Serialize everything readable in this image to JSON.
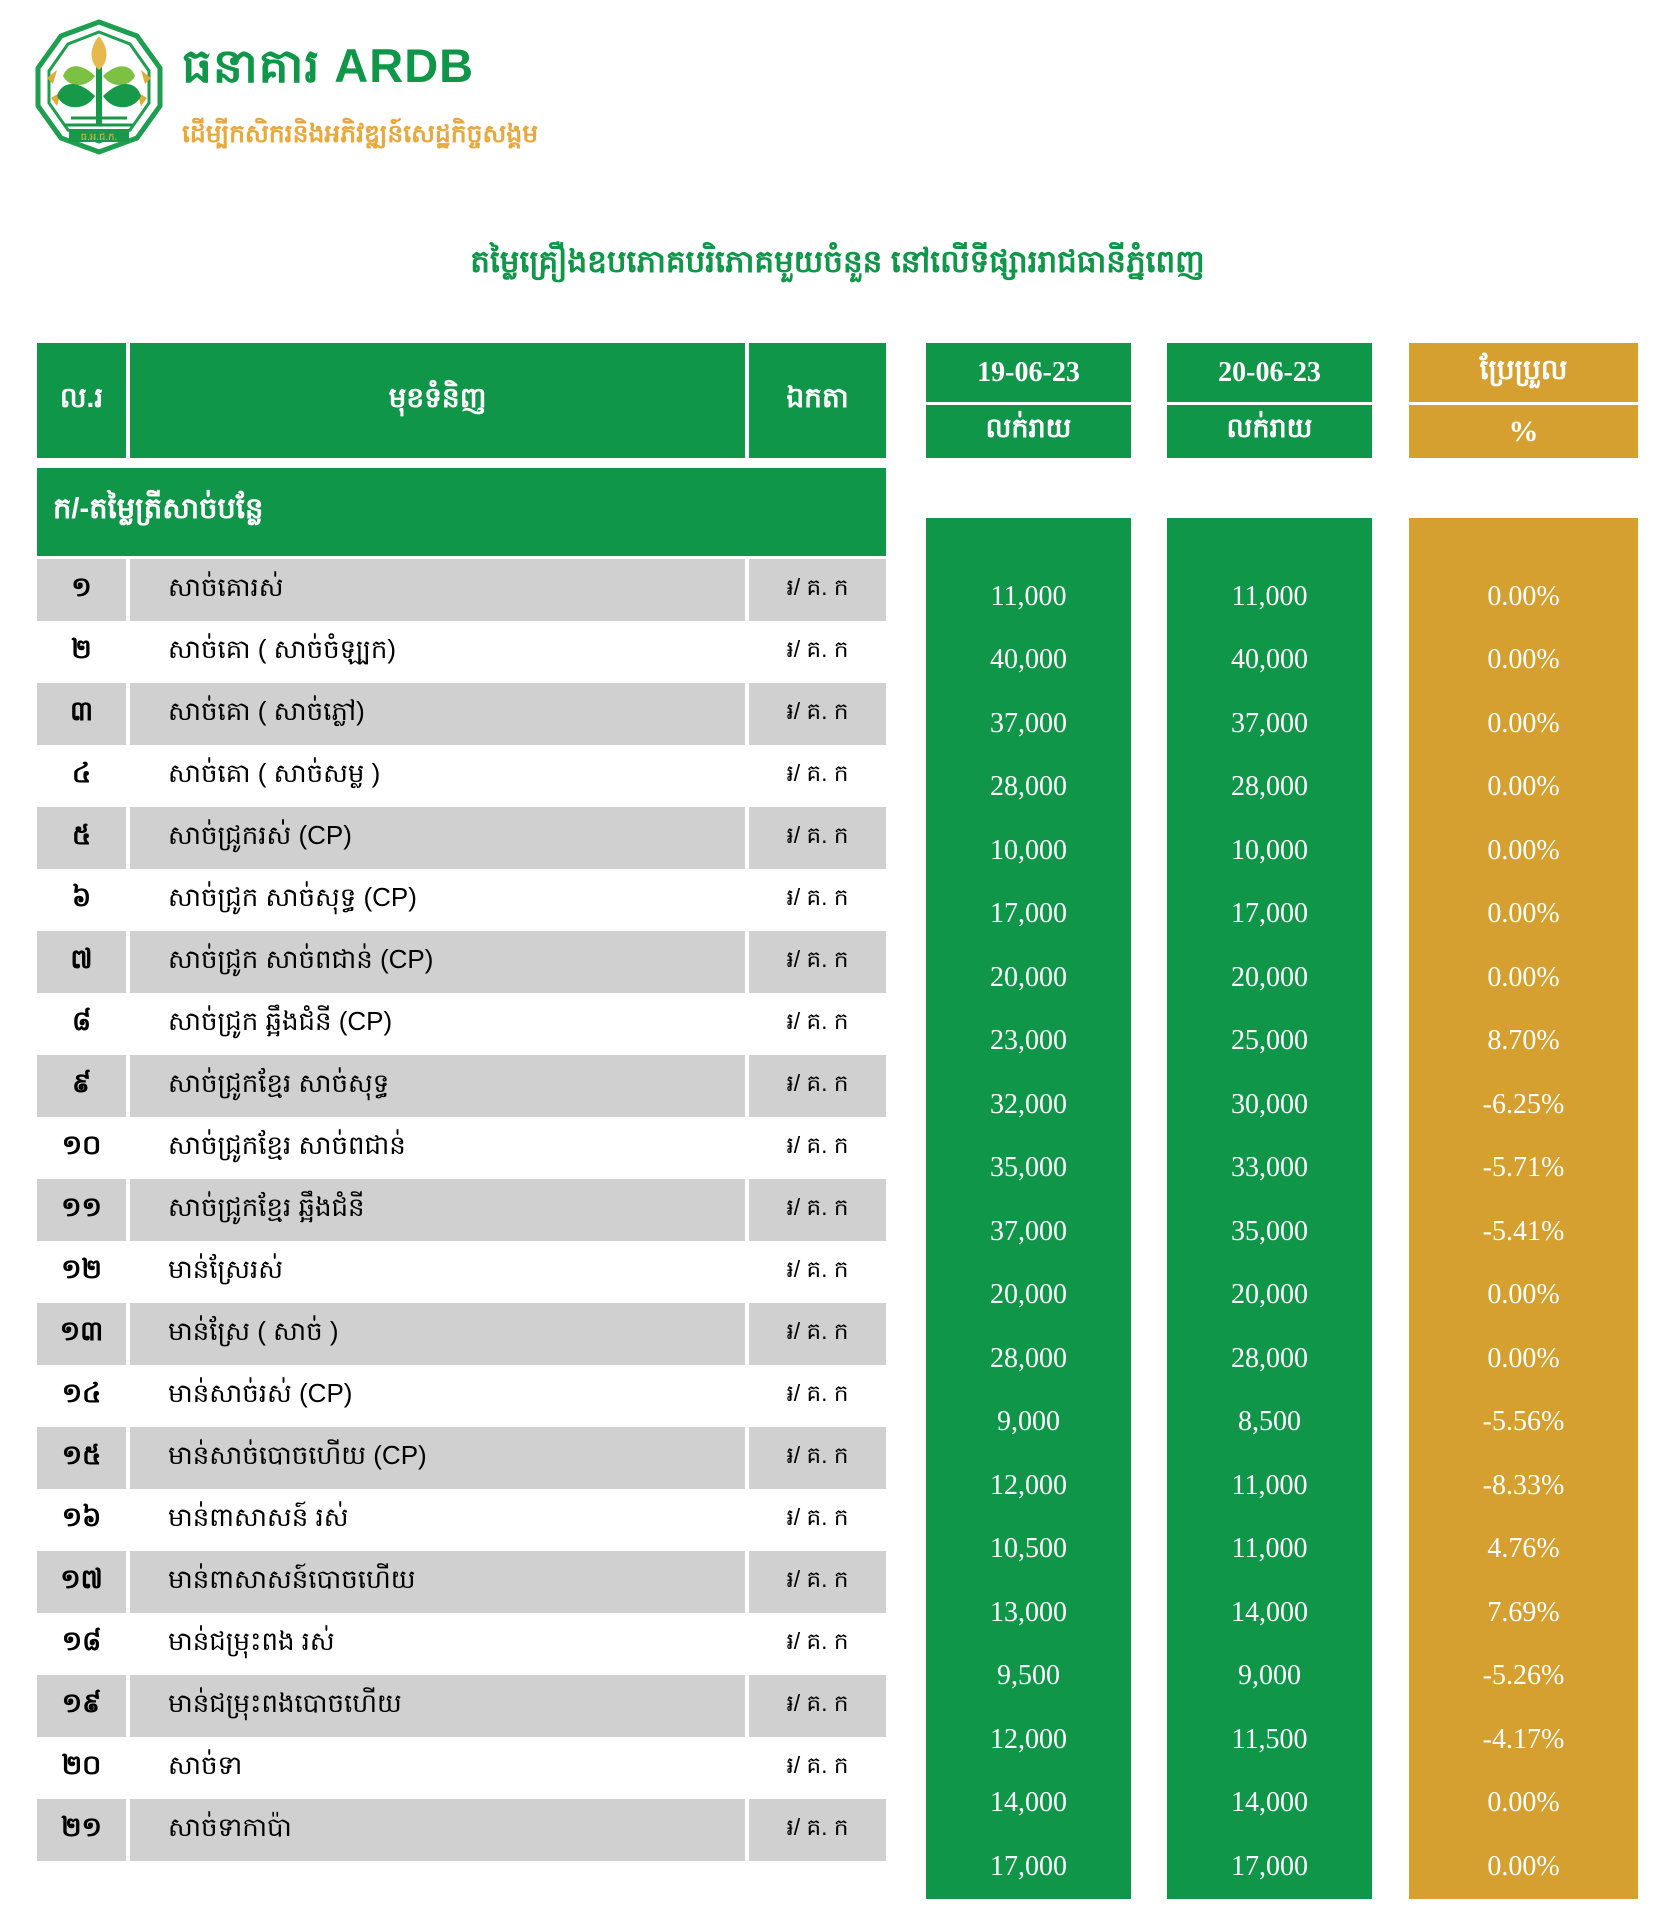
{
  "brand": {
    "name": "ធនាគារ ARDB",
    "tagline": "ដើម្បីកសិករនិងអភិវឌ្ឍន៍សេដ្ឋកិច្ចសង្គម",
    "logo_caption": "ធ.អ.ជ.ក."
  },
  "title": "តម្លៃគ្រឿងឧបភោគបរិភោគមួយចំនួន នៅលើទីផ្សាររាជធានីភ្នំពេញ",
  "table": {
    "headers": {
      "no": "ល.រ",
      "item": "មុខទំនិញ",
      "unit": "ឯកតា",
      "date1": "19-06-23",
      "date2": "20-06-23",
      "retail1": "លក់រាយ",
      "retail2": "លក់រាយ",
      "change": "ប្រែប្រួល",
      "percent": "%"
    },
    "section": "ក/-តម្លៃត្រីសាច់បន្លែ",
    "rows": [
      {
        "no": "១",
        "item": "សាច់គោរស់",
        "unit": "៛/ គ. ក",
        "price1": "11,000",
        "price2": "11,000",
        "change": "0.00%"
      },
      {
        "no": "២",
        "item": "សាច់គោ ( សាច់ចំឡ្បក)",
        "unit": "៛/ គ. ក",
        "price1": "40,000",
        "price2": "40,000",
        "change": "0.00%"
      },
      {
        "no": "៣",
        "item": "សាច់គោ ( សាច់ភ្លៅ)",
        "unit": "៛/ គ. ក",
        "price1": "37,000",
        "price2": "37,000",
        "change": "0.00%"
      },
      {
        "no": "៤",
        "item": "សាច់គោ ( សាច់សម្ល )",
        "unit": "៛/ គ. ក",
        "price1": "28,000",
        "price2": "28,000",
        "change": "0.00%"
      },
      {
        "no": "៥",
        "item": "សាច់ជ្រូករស់ (CP)",
        "unit": "៛/ គ. ក",
        "price1": "10,000",
        "price2": "10,000",
        "change": "0.00%"
      },
      {
        "no": "៦",
        "item": "សាច់ជ្រូក សាច់សុទ្ធ (CP)",
        "unit": "៛/ គ. ក",
        "price1": "17,000",
        "price2": "17,000",
        "change": "0.00%"
      },
      {
        "no": "៧",
        "item": "សាច់ជ្រូក សាច់ពជាន់ (CP)",
        "unit": "៛/ គ. ក",
        "price1": "20,000",
        "price2": "20,000",
        "change": "0.00%"
      },
      {
        "no": "៨",
        "item": "សាច់ជ្រូក ឆ្អឹងជំនី (CP)",
        "unit": "៛/ គ. ក",
        "price1": "23,000",
        "price2": "25,000",
        "change": "8.70%"
      },
      {
        "no": "៩",
        "item": "សាច់ជ្រូកខ្មែរ សាច់សុទ្ធ",
        "unit": "៛/ គ. ក",
        "price1": "32,000",
        "price2": "30,000",
        "change": "-6.25%"
      },
      {
        "no": "១០",
        "item": "សាច់ជ្រូកខ្មែរ សាច់ពជាន់",
        "unit": "៛/ គ. ក",
        "price1": "35,000",
        "price2": "33,000",
        "change": "-5.71%"
      },
      {
        "no": "១១",
        "item": "សាច់ជ្រូកខ្មែរ ឆ្អឹងជំនី",
        "unit": "៛/ គ. ក",
        "price1": "37,000",
        "price2": "35,000",
        "change": "-5.41%"
      },
      {
        "no": "១២",
        "item": "មាន់ស្រែរស់",
        "unit": "៛/ គ. ក",
        "price1": "20,000",
        "price2": "20,000",
        "change": "0.00%"
      },
      {
        "no": "១៣",
        "item": "មាន់ស្រែ ( សាច់ )",
        "unit": "៛/ គ. ក",
        "price1": "28,000",
        "price2": "28,000",
        "change": "0.00%"
      },
      {
        "no": "១៤",
        "item": "មាន់សាច់រស់ (CP)",
        "unit": "៛/ គ. ក",
        "price1": "9,000",
        "price2": "8,500",
        "change": "-5.56%"
      },
      {
        "no": "១៥",
        "item": "មាន់សាច់បោចហើយ (CP)",
        "unit": "៛/ គ. ក",
        "price1": "12,000",
        "price2": "11,000",
        "change": "-8.33%"
      },
      {
        "no": "១៦",
        "item": "មាន់ពាសាសន៍ រស់",
        "unit": "៛/ គ. ក",
        "price1": "10,500",
        "price2": "11,000",
        "change": "4.76%"
      },
      {
        "no": "១៧",
        "item": "មាន់ពាសាសន៍បោចហើយ",
        "unit": "៛/ គ. ក",
        "price1": "13,000",
        "price2": "14,000",
        "change": "7.69%"
      },
      {
        "no": "១៨",
        "item": "មាន់ជម្រុះពង រស់",
        "unit": "៛/ គ. ក",
        "price1": "9,500",
        "price2": "9,000",
        "change": "-5.26%"
      },
      {
        "no": "១៩",
        "item": "មាន់ជម្រុះពងបោចហើយ",
        "unit": "៛/ គ. ក",
        "price1": "12,000",
        "price2": "11,500",
        "change": "-4.17%"
      },
      {
        "no": "២០",
        "item": "សាច់ទា",
        "unit": "៛/ គ. ក",
        "price1": "14,000",
        "price2": "14,000",
        "change": "0.00%"
      },
      {
        "no": "២១",
        "item": "សាច់ទាកាប៉ា",
        "unit": "៛/ គ. ក",
        "price1": "17,000",
        "price2": "17,000",
        "change": "0.00%"
      }
    ]
  },
  "colors": {
    "green": "#0F9648",
    "gold": "#D5A02F",
    "row_gray": "#D0D0D0",
    "tagline_gold": "#E9A83C"
  }
}
